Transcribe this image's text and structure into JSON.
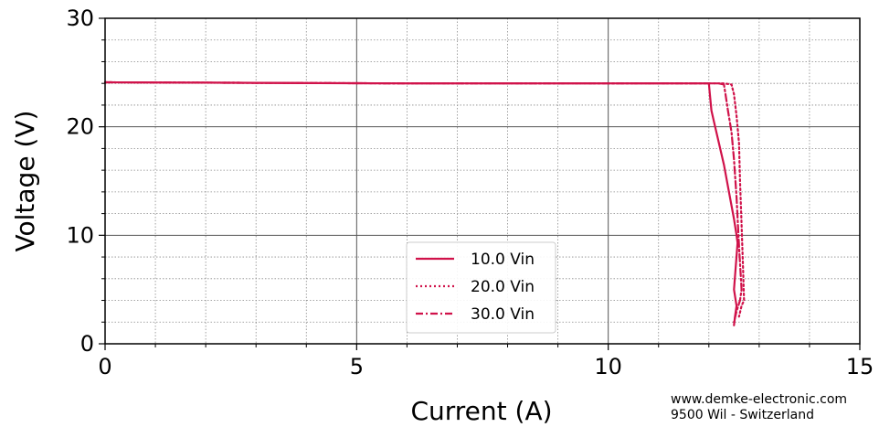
{
  "chart_data": {
    "type": "line",
    "xlabel": "Current (A)",
    "ylabel": "Voltage (V)",
    "xlim": [
      0,
      15
    ],
    "ylim": [
      0,
      30
    ],
    "xticks": [
      0,
      5,
      10,
      15
    ],
    "yticks": [
      0,
      10,
      20,
      30
    ],
    "xtick_labels": [
      "0",
      "5",
      "10",
      "15"
    ],
    "ytick_labels": [
      "0",
      "10",
      "20",
      "30"
    ],
    "x_minor_step": 1,
    "y_minor_step": 2,
    "grid": true,
    "legend_position": "lower-center",
    "line_color": "#d0124a",
    "series": [
      {
        "name": "10.0 Vin",
        "style": "solid",
        "x": [
          0,
          3,
          6,
          9,
          11,
          11.9,
          12.0,
          12.02,
          12.05,
          12.1,
          12.2,
          12.3,
          12.4,
          12.5,
          12.55,
          12.57,
          12.5,
          12.55,
          12.52,
          12.5
        ],
        "y": [
          24.1,
          24.05,
          24.0,
          24.0,
          24.0,
          24.0,
          24.0,
          23.0,
          21.5,
          20.5,
          18.5,
          16.5,
          14.0,
          11.5,
          10.0,
          9.3,
          5.0,
          3.5,
          2.5,
          1.7
        ]
      },
      {
        "name": "20.0 Vin",
        "style": "dotted",
        "x": [
          0,
          3,
          6,
          9,
          11,
          12.0,
          12.3,
          12.45,
          12.5,
          12.55,
          12.6,
          12.62,
          12.65,
          12.68,
          12.7,
          12.65,
          12.6
        ],
        "y": [
          24.1,
          24.05,
          24.0,
          24.0,
          24.0,
          24.0,
          24.0,
          23.9,
          23.0,
          21.0,
          18.5,
          15.0,
          11.0,
          7.0,
          4.0,
          3.5,
          2.5
        ]
      },
      {
        "name": "30.0 Vin",
        "style": "dashdot",
        "x": [
          0,
          3,
          6,
          9,
          11,
          12.0,
          12.2,
          12.3,
          12.33,
          12.38,
          12.45,
          12.5,
          12.55,
          12.6,
          12.65,
          12.62,
          12.55,
          12.5
        ],
        "y": [
          24.1,
          24.05,
          24.0,
          24.0,
          24.0,
          24.0,
          24.0,
          23.9,
          23.0,
          21.5,
          19.5,
          17.0,
          13.5,
          9.0,
          5.0,
          4.0,
          3.0,
          2.0
        ]
      }
    ]
  },
  "watermark": {
    "line1": "www.demke-electronic.com",
    "line2": "9500 Wil - Switzerland"
  }
}
